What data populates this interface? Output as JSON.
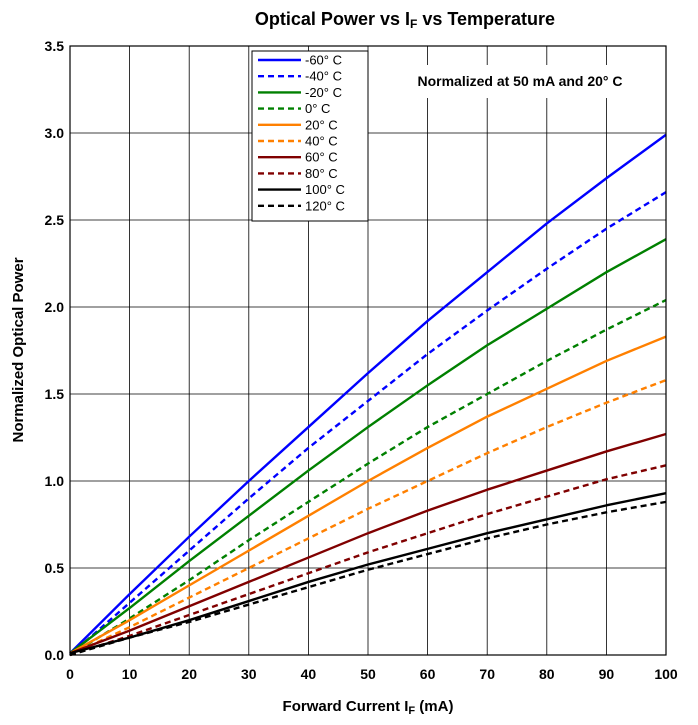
{
  "chart_data": {
    "type": "line",
    "title": {
      "main": "Optical Power vs I",
      "sub": "F",
      "rest": " vs Temperature"
    },
    "xlabel": {
      "main": "Forward Current I",
      "sub": "F",
      "rest": " (mA)"
    },
    "ylabel": "Normalized Optical Power",
    "note": "Normalized at 50 mA and 20° C",
    "xlim": [
      0,
      100
    ],
    "ylim": [
      0,
      3.5
    ],
    "xticks": [
      0,
      10,
      20,
      30,
      40,
      50,
      60,
      70,
      80,
      90,
      100
    ],
    "yticks": [
      "0.0",
      "0.5",
      "1.0",
      "1.5",
      "2.0",
      "2.5",
      "3.0",
      "3.5"
    ],
    "grid": true,
    "legend_position": "top-center",
    "x": [
      0,
      10,
      20,
      30,
      40,
      50,
      60,
      70,
      80,
      90,
      100
    ],
    "series": [
      {
        "name": "-60° C",
        "color": "#0000ff",
        "dash": "solid",
        "values": [
          0.01,
          0.35,
          0.68,
          1.0,
          1.31,
          1.62,
          1.92,
          2.2,
          2.48,
          2.74,
          2.99
        ]
      },
      {
        "name": "-40° C",
        "color": "#0000ff",
        "dash": "dashed",
        "values": [
          0.0,
          0.3,
          0.6,
          0.9,
          1.19,
          1.46,
          1.73,
          1.98,
          2.22,
          2.45,
          2.66
        ]
      },
      {
        "name": "-20° C",
        "color": "#008000",
        "dash": "solid",
        "values": [
          0.01,
          0.27,
          0.54,
          0.8,
          1.06,
          1.31,
          1.55,
          1.78,
          1.99,
          2.2,
          2.39
        ]
      },
      {
        "name": "0° C",
        "color": "#008000",
        "dash": "dashed",
        "values": [
          0.0,
          0.21,
          0.43,
          0.66,
          0.88,
          1.1,
          1.31,
          1.5,
          1.69,
          1.87,
          2.04
        ]
      },
      {
        "name": "20° C",
        "color": "#ff8000",
        "dash": "solid",
        "values": [
          0.01,
          0.2,
          0.4,
          0.6,
          0.8,
          1.0,
          1.19,
          1.37,
          1.53,
          1.69,
          1.83
        ]
      },
      {
        "name": "40° C",
        "color": "#ff8000",
        "dash": "dashed",
        "values": [
          0.0,
          0.16,
          0.33,
          0.5,
          0.67,
          0.84,
          1.0,
          1.16,
          1.31,
          1.45,
          1.58
        ]
      },
      {
        "name": "60° C",
        "color": "#800000",
        "dash": "solid",
        "values": [
          0.01,
          0.14,
          0.28,
          0.42,
          0.56,
          0.7,
          0.83,
          0.95,
          1.06,
          1.17,
          1.27
        ]
      },
      {
        "name": "80° C",
        "color": "#800000",
        "dash": "dashed",
        "values": [
          0.0,
          0.11,
          0.23,
          0.35,
          0.47,
          0.59,
          0.7,
          0.81,
          0.91,
          1.01,
          1.09
        ]
      },
      {
        "name": "100° C",
        "color": "#000000",
        "dash": "solid",
        "values": [
          0.01,
          0.1,
          0.2,
          0.31,
          0.42,
          0.52,
          0.61,
          0.7,
          0.78,
          0.86,
          0.93
        ]
      },
      {
        "name": "120° C",
        "color": "#000000",
        "dash": "dashed",
        "values": [
          0.0,
          0.1,
          0.19,
          0.29,
          0.39,
          0.49,
          0.58,
          0.67,
          0.75,
          0.82,
          0.88
        ]
      }
    ]
  }
}
